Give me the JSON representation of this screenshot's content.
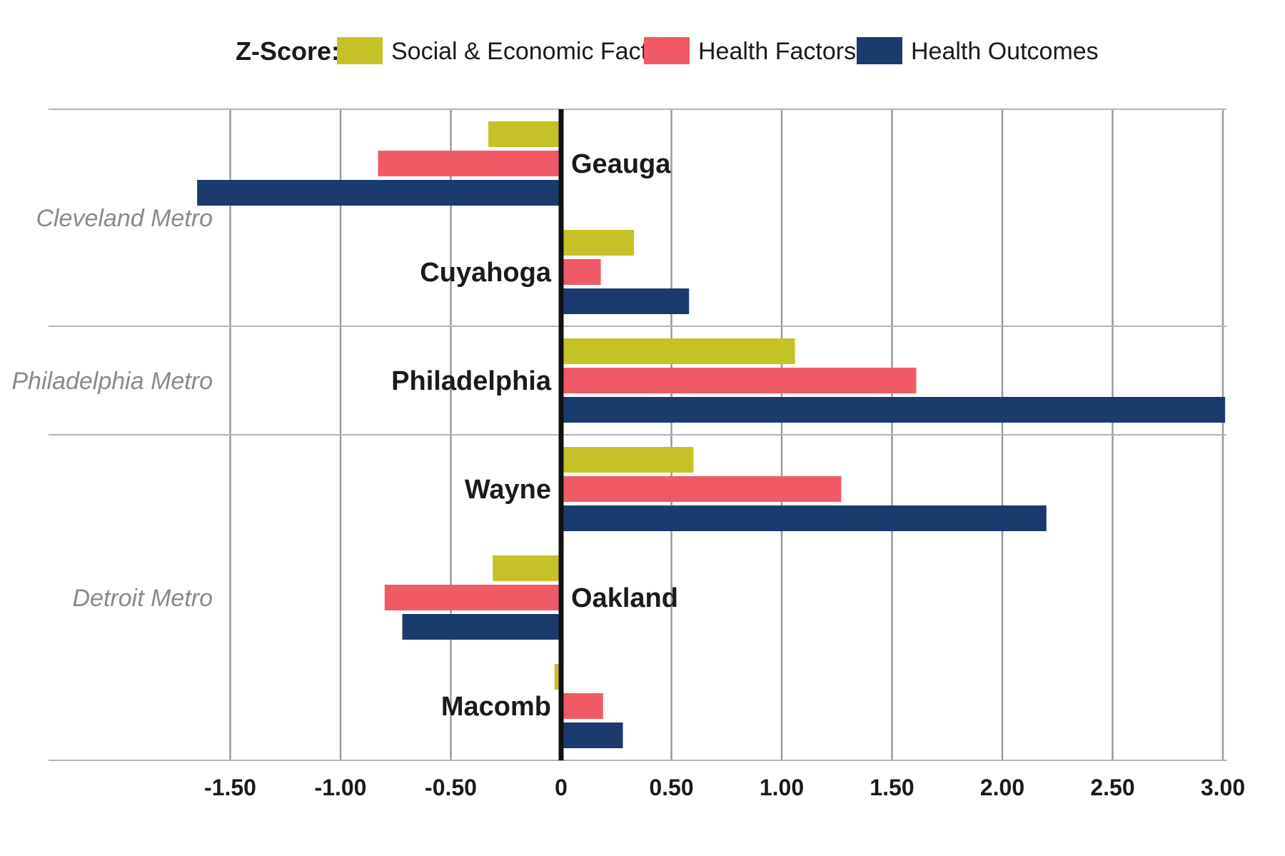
{
  "chart_data": {
    "type": "bar",
    "orientation": "horizontal",
    "legend_title": "Z-Score:",
    "series": [
      {
        "key": "social",
        "name": "Social & Economic Factors",
        "color": "#c5c228"
      },
      {
        "key": "factors",
        "name": "Health Factors",
        "color": "#f05a67"
      },
      {
        "key": "outcomes",
        "name": "Health Outcomes",
        "color": "#1b3a6d"
      }
    ],
    "groups": [
      {
        "metro": "Cleveland Metro",
        "counties": [
          {
            "name": "Geauga",
            "social": -0.33,
            "factors": -0.83,
            "outcomes": -1.65
          },
          {
            "name": "Cuyahoga",
            "social": 0.33,
            "factors": 0.18,
            "outcomes": 0.58
          }
        ]
      },
      {
        "metro": "Philadelphia Metro",
        "counties": [
          {
            "name": "Philadelphia",
            "social": 1.06,
            "factors": 1.61,
            "outcomes": 3.01
          }
        ]
      },
      {
        "metro": "Detroit Metro",
        "counties": [
          {
            "name": "Wayne",
            "social": 0.6,
            "factors": 1.27,
            "outcomes": 2.2
          },
          {
            "name": "Oakland",
            "social": -0.31,
            "factors": -0.8,
            "outcomes": -0.72
          },
          {
            "name": "Macomb",
            "social": -0.03,
            "factors": 0.19,
            "outcomes": 0.28
          }
        ]
      }
    ],
    "xlim": [
      -1.5,
      3.0
    ],
    "xticks": [
      -1.5,
      -1.0,
      -0.5,
      0,
      0.5,
      1.0,
      1.5,
      2.0,
      2.5,
      3.0
    ],
    "xtick_labels": [
      "-1.50",
      "-1.00",
      "-0.50",
      "0",
      "0.50",
      "1.00",
      "1.50",
      "2.00",
      "2.50",
      "3.00"
    ],
    "grid": true,
    "legend_position": "top"
  }
}
